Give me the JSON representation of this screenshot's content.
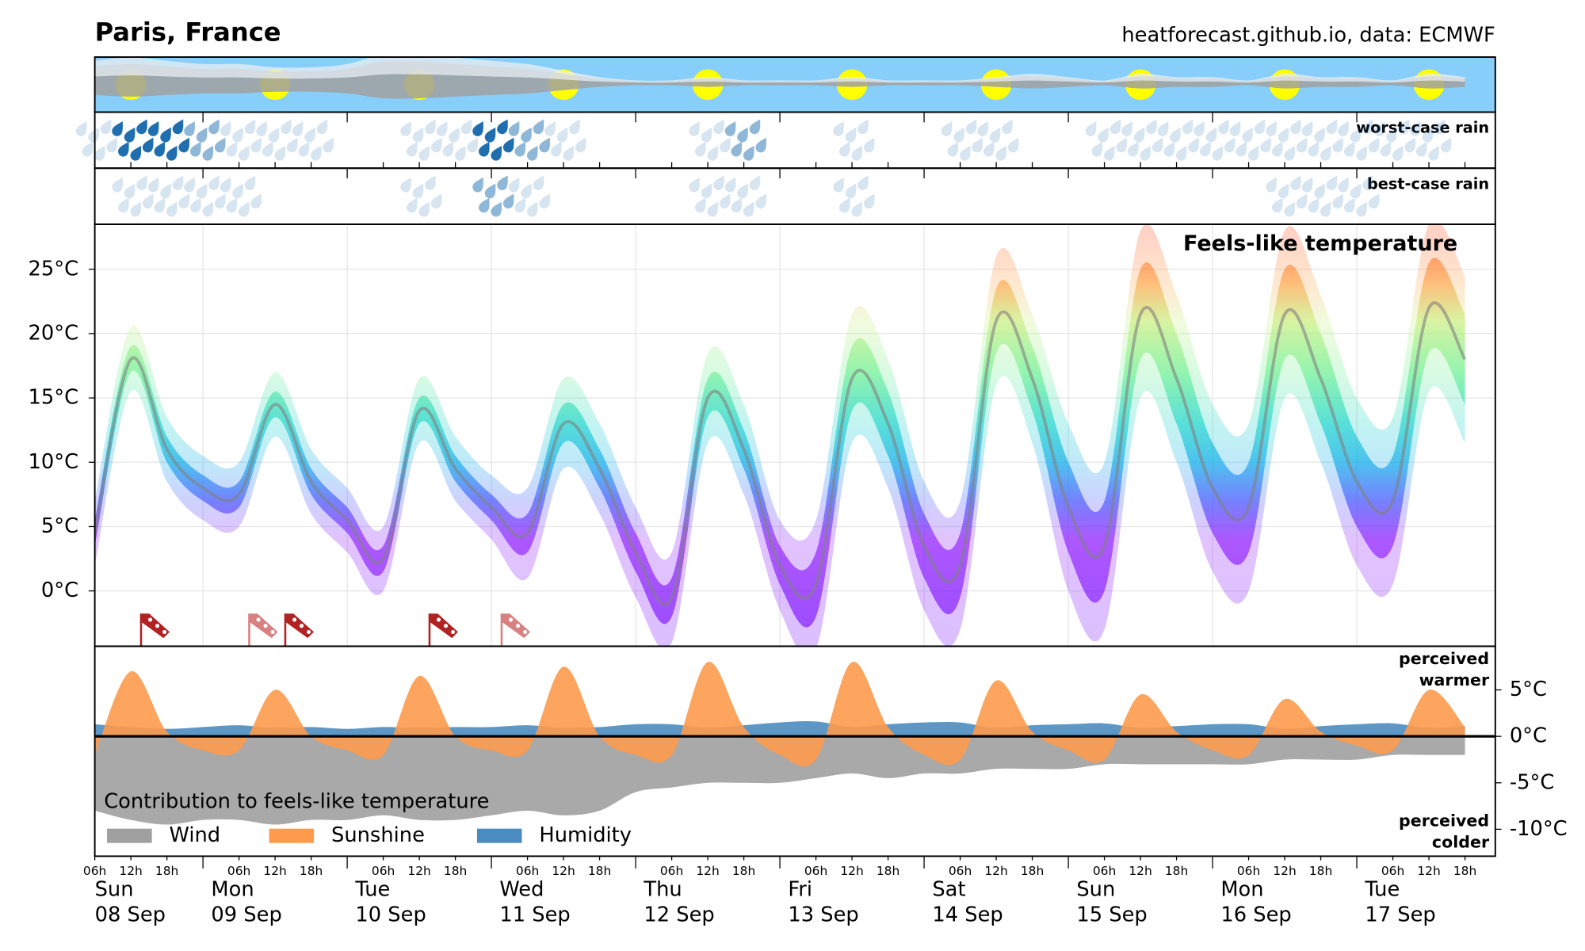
{
  "header": {
    "title": "Paris, France",
    "source": "heatforecast.github.io, data: ECMWF"
  },
  "sky": {
    "sky_color": "#87cefa",
    "sun_color": "#ffff00",
    "cloud_color": "#a0a0a0",
    "cloud_cover": [
      0.7,
      0.8,
      0.7,
      0.6,
      0.6,
      0.5,
      0.5,
      0.6,
      0.9,
      0.9,
      0.8,
      0.7,
      0.6,
      0.4,
      0.2,
      0.1,
      0.1,
      0.2,
      0.1,
      0.1,
      0.1,
      0.2,
      0.1,
      0.1,
      0.1,
      0.2,
      0.3,
      0.2,
      0.1,
      0.3,
      0.2,
      0.2,
      0.1,
      0.3,
      0.2,
      0.2,
      0.1,
      0.3,
      0.2
    ]
  },
  "rain": [
    {
      "label": "worst-case rain",
      "color": "#1f6fb0",
      "values": [
        1,
        3,
        3,
        2,
        1,
        1,
        1,
        0,
        0,
        1,
        1,
        3,
        2,
        1,
        0,
        0,
        0,
        1,
        2,
        0,
        0,
        1,
        0,
        0,
        1,
        1,
        0,
        0,
        1,
        1,
        1,
        1,
        1,
        1,
        1,
        1,
        1,
        1,
        0
      ]
    },
    {
      "label": "best-case rain",
      "color": "#1f6fb0",
      "values": [
        0,
        1,
        1,
        1,
        1,
        0,
        0,
        0,
        0,
        1,
        0,
        2,
        1,
        0,
        0,
        0,
        0,
        1,
        1,
        0,
        0,
        1,
        0,
        0,
        0,
        0,
        0,
        0,
        0,
        0,
        0,
        0,
        0,
        1,
        1,
        1,
        0,
        0,
        0
      ]
    }
  ],
  "chart_data": [
    {
      "type": "line",
      "title": "Feels-like temperature",
      "categories": [
        "06h",
        "12h",
        "18h",
        null,
        "06h",
        "12h",
        "18h",
        null,
        "06h",
        "12h",
        "18h",
        null,
        "06h",
        "12h",
        "18h",
        null,
        "06h",
        "12h",
        "18h",
        null,
        "06h",
        "12h",
        "18h",
        null,
        "06h",
        "12h",
        "18h",
        null,
        "06h",
        "12h",
        "18h",
        null,
        "06h",
        "12h",
        "18h",
        null,
        "06h",
        "12h",
        "18h"
      ],
      "days": [
        {
          "weekday": "Sun",
          "date": "08 Sep"
        },
        {
          "weekday": "Mon",
          "date": "09 Sep"
        },
        {
          "weekday": "Tue",
          "date": "10 Sep"
        },
        {
          "weekday": "Wed",
          "date": "11 Sep"
        },
        {
          "weekday": "Thu",
          "date": "12 Sep"
        },
        {
          "weekday": "Fri",
          "date": "13 Sep"
        },
        {
          "weekday": "Sat",
          "date": "14 Sep"
        },
        {
          "weekday": "Sun",
          "date": "15 Sep"
        },
        {
          "weekday": "Mon",
          "date": "16 Sep"
        },
        {
          "weekday": "Tue",
          "date": "17 Sep"
        }
      ],
      "ylim": [
        -4.3,
        28.5
      ],
      "yticks": [
        {
          "value": 0,
          "label": "0°C"
        },
        {
          "value": 5,
          "label": "5°C"
        },
        {
          "value": 10,
          "label": "10°C"
        },
        {
          "value": 15,
          "label": "15°C"
        },
        {
          "value": 20,
          "label": "20°C"
        },
        {
          "value": 25,
          "label": "25°C"
        }
      ],
      "grid": true,
      "series": [
        {
          "color": "#808080",
          "values": [
            4.5,
            18,
            11,
            8,
            7.5,
            14.5,
            8.5,
            5.5,
            2.5,
            14,
            9.5,
            6.5,
            4.5,
            13,
            9.5,
            3,
            -0.5,
            15,
            11,
            2,
            0.5,
            16.5,
            13,
            3.5,
            2,
            21,
            16.5,
            6.5,
            3.5,
            21.5,
            16.5,
            8,
            6.5,
            21.5,
            16.5,
            8.5,
            7,
            22,
            18
          ]
        }
      ],
      "bands": [
        {
          "opacity": 0.25,
          "low": [
            2,
            15.5,
            8.5,
            5.5,
            5,
            12,
            6,
            3,
            0,
            11.5,
            7,
            4,
            1,
            9.5,
            6,
            -0.5,
            -4,
            11.5,
            7.5,
            -1.5,
            -4.5,
            11.5,
            8,
            -1.5,
            -3,
            16,
            11.5,
            0,
            -3,
            15,
            10,
            1.5,
            0,
            15,
            10,
            2,
            0.5,
            15.5,
            11.5
          ],
          "high": [
            7,
            20.5,
            13.5,
            10.5,
            10,
            17,
            11,
            8,
            5,
            16.5,
            12,
            9,
            8,
            16.5,
            13,
            6.5,
            3,
            18.5,
            14.5,
            5.5,
            5.5,
            21.5,
            18,
            8.5,
            7,
            26,
            21.5,
            13,
            10,
            28,
            23,
            14.5,
            13,
            28,
            23,
            15,
            13.5,
            28.5,
            24.5
          ]
        },
        {
          "opacity": 0.6,
          "low": [
            3.5,
            17,
            10,
            7,
            6.5,
            13.5,
            7.5,
            4.5,
            1.5,
            13,
            8.5,
            5.5,
            3,
            11.5,
            8,
            1.5,
            -2,
            13.5,
            9.5,
            0.5,
            -2,
            14,
            10.5,
            1,
            -0.5,
            18.5,
            14,
            3,
            0,
            18,
            13,
            4.5,
            3,
            18,
            13,
            5,
            3.5,
            18.5,
            14.5
          ],
          "high": [
            5.5,
            19,
            12,
            9,
            8.5,
            15.5,
            9.5,
            6.5,
            3.5,
            15,
            10.5,
            7.5,
            6,
            14.5,
            11,
            4.5,
            1,
            16.5,
            12.5,
            3.5,
            3,
            19,
            15.5,
            6,
            4.5,
            23.5,
            19,
            10,
            7,
            25,
            20,
            11.5,
            10,
            25,
            20,
            12,
            10.5,
            25.5,
            21.5
          ]
        }
      ],
      "colormap": [
        {
          "value": -3,
          "color": "#7300ff"
        },
        {
          "value": 4,
          "color": "#8a10ff"
        },
        {
          "value": 7,
          "color": "#3a4cff"
        },
        {
          "value": 10,
          "color": "#00a8e8"
        },
        {
          "value": 13,
          "color": "#10d2c8"
        },
        {
          "value": 17,
          "color": "#66f08c"
        },
        {
          "value": 21,
          "color": "#c8ee7a"
        },
        {
          "value": 24,
          "color": "#ffa040"
        },
        {
          "value": 28,
          "color": "#ff4a1a"
        }
      ],
      "wind_flags": [
        0,
        2,
        0,
        0,
        1,
        2,
        0,
        0,
        0,
        2,
        0,
        1,
        0,
        0,
        0,
        0,
        0,
        0,
        0,
        0,
        0,
        0,
        0,
        0,
        0,
        0,
        0,
        0,
        0,
        0,
        0,
        0,
        0,
        0,
        0,
        0,
        0,
        0,
        0
      ],
      "wind_flag_colors": [
        "#b22222",
        "#d98080"
      ]
    },
    {
      "type": "area",
      "legend_title": "Contribution to feels-like temperature",
      "warmer_label": [
        "perceived",
        "warmer"
      ],
      "colder_label": [
        "perceived",
        "colder"
      ],
      "ylim": [
        -12.9,
        9.7
      ],
      "yticks": [
        {
          "value": -10,
          "label": "-10°C"
        },
        {
          "value": -5,
          "label": "-5°C"
        },
        {
          "value": 0,
          "label": "0°C"
        },
        {
          "value": 5,
          "label": "5°C"
        }
      ],
      "series": [
        {
          "name": "Wind",
          "color": "#a0a0a0",
          "values": [
            -8,
            -9,
            -9.5,
            -9,
            -9,
            -9.5,
            -9,
            -9,
            -8.5,
            -9,
            -9,
            -8.5,
            -8,
            -8.5,
            -8,
            -6,
            -5.5,
            -5,
            -5,
            -5,
            -4.5,
            -4,
            -4.5,
            -4,
            -4,
            -3.5,
            -3.5,
            -3.5,
            -3,
            -3,
            -3,
            -3,
            -3,
            -2.5,
            -2.5,
            -2.5,
            -2,
            -2,
            -2
          ]
        },
        {
          "name": "Sunshine",
          "color": "#fd9a4c",
          "values": [
            -2,
            7,
            0.5,
            -1.5,
            -1.5,
            5,
            0,
            -1.5,
            -2,
            6.5,
            0,
            -1.5,
            -1.5,
            7.5,
            0,
            -2,
            -2,
            8,
            1,
            -2,
            -2.5,
            8,
            1,
            -2,
            -2.5,
            6,
            0.5,
            -1.5,
            -2.5,
            4.5,
            0.5,
            -1.5,
            -2,
            4,
            0.5,
            -1,
            -1.5,
            5,
            1
          ]
        },
        {
          "name": "Humidity",
          "color": "#4a8cc0",
          "values": [
            1.3,
            1,
            0.8,
            1,
            1.2,
            0.9,
            1,
            0.8,
            1,
            0.9,
            1,
            1,
            1.2,
            0.9,
            1,
            1.3,
            1.3,
            0.9,
            1.2,
            1.5,
            1.6,
            1,
            1.3,
            1.5,
            1.5,
            0.9,
            1.2,
            1.3,
            1.4,
            0.9,
            1.1,
            1.3,
            1.3,
            0.8,
            1.1,
            1.3,
            1.4,
            0.9,
            1.1
          ]
        }
      ]
    }
  ]
}
